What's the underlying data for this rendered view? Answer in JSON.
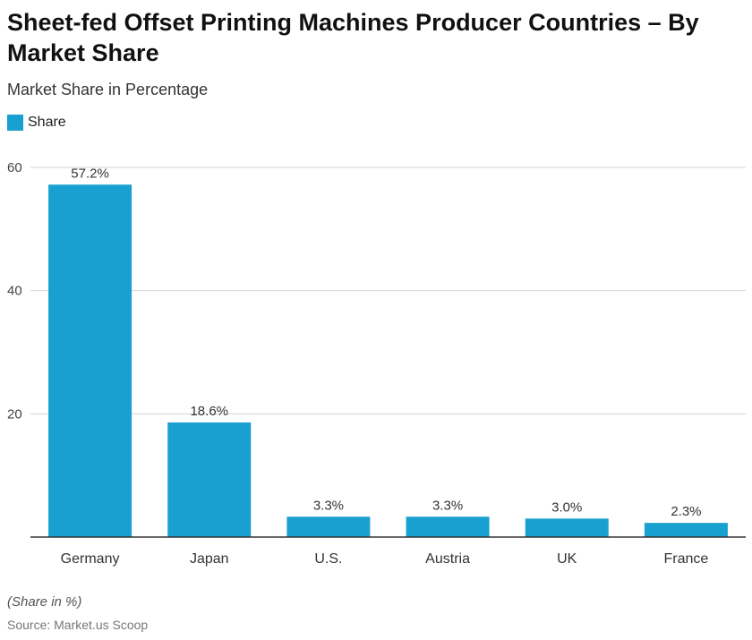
{
  "title": "Sheet-fed Offset Printing Machines Producer Countries – By Market Share",
  "subtitle": "Market Share in Percentage",
  "note": "(Share in %)",
  "source": "Source: Market.us Scoop",
  "chart_data": {
    "type": "bar",
    "categories": [
      "Germany",
      "Japan",
      "U.S.",
      "Austria",
      "UK",
      "France"
    ],
    "series": [
      {
        "name": "Share",
        "values": [
          57.2,
          18.6,
          3.3,
          3.3,
          3.0,
          2.3
        ],
        "labels": [
          "57.2%",
          "18.6%",
          "3.3%",
          "3.3%",
          "3.0%",
          "2.3%"
        ],
        "color": "#18a0d0"
      }
    ],
    "ylim": [
      0,
      60
    ],
    "yticks": [
      20,
      40,
      60
    ],
    "grid": true,
    "legend": "top-left"
  }
}
